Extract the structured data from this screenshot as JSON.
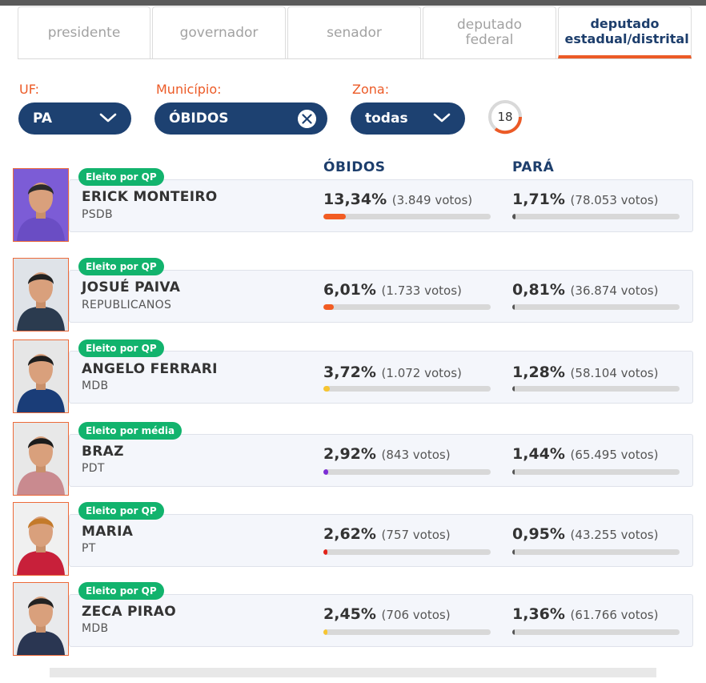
{
  "tabs": [
    {
      "label": "presidente"
    },
    {
      "label": "governador"
    },
    {
      "label": "senador"
    },
    {
      "label": "deputado federal"
    },
    {
      "label": "deputado estadual/distrital"
    }
  ],
  "active_tab": "deputado estadual/distrital",
  "filters": {
    "uf": {
      "label": "UF:",
      "value": "PA"
    },
    "municipio": {
      "label": "Município:",
      "value": "ÓBIDOS"
    },
    "zona": {
      "label": "Zona:",
      "value": "todas"
    },
    "count": "18"
  },
  "columns": {
    "local": "ÓBIDOS",
    "state": "PARÁ"
  },
  "candidates": [
    {
      "badge": "Eleito por QP",
      "name": "ERICK MONTEIRO",
      "party": "PSDB",
      "local_pct": "13,34%",
      "local_votes": "(3.849 votos)",
      "local_share": 13.34,
      "state_pct": "1,71%",
      "state_votes": "(78.053 votos)",
      "state_share": 1.71,
      "party_color": "#f25c22"
    },
    {
      "badge": "Eleito por QP",
      "name": "JOSUÉ PAIVA",
      "party": "REPUBLICANOS",
      "local_pct": "6,01%",
      "local_votes": "(1.733 votos)",
      "local_share": 6.01,
      "state_pct": "0,81%",
      "state_votes": "(36.874 votos)",
      "state_share": 0.81,
      "party_color": "#f25c22"
    },
    {
      "badge": "Eleito por QP",
      "name": "ANGELO FERRARI",
      "party": "MDB",
      "local_pct": "3,72%",
      "local_votes": "(1.072 votos)",
      "local_share": 3.72,
      "state_pct": "1,28%",
      "state_votes": "(58.104 votos)",
      "state_share": 1.28,
      "party_color": "#f7c531"
    },
    {
      "badge": "Eleito por média",
      "name": "BRAZ",
      "party": "PDT",
      "local_pct": "2,92%",
      "local_votes": "(843 votos)",
      "local_share": 2.92,
      "state_pct": "1,44%",
      "state_votes": "(65.495 votos)",
      "state_share": 1.44,
      "party_color": "#7c2ed6"
    },
    {
      "badge": "Eleito por QP",
      "name": "MARIA",
      "party": "PT",
      "local_pct": "2,62%",
      "local_votes": "(757 votos)",
      "local_share": 2.62,
      "state_pct": "0,95%",
      "state_votes": "(43.255 votos)",
      "state_share": 0.95,
      "party_color": "#e2231a"
    },
    {
      "badge": "Eleito por QP",
      "name": "ZECA PIRAO",
      "party": "MDB",
      "local_pct": "2,45%",
      "local_votes": "(706 votos)",
      "local_share": 2.45,
      "state_pct": "1,36%",
      "state_votes": "(61.766 votos)",
      "state_share": 1.36,
      "party_color": "#f7c531"
    }
  ],
  "colors": {
    "accent": "#ec5a26",
    "navy": "#1d4171",
    "badge_green": "#12b36d",
    "state_bar": "#555555"
  }
}
